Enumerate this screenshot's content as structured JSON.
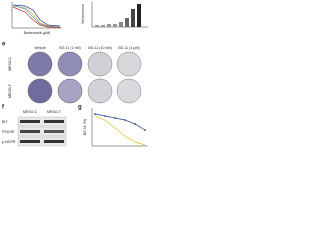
{
  "panel_a": {
    "x_label": "Bortezomib (μM)"
  },
  "panel_b": {
    "y_label": "Senescence"
  },
  "panel_e": {
    "letter": "e",
    "columns": [
      "Vehicle",
      "BG 11 (1 nM)",
      "BG 11 (10 nM)",
      "BG 11 (1 μM)"
    ],
    "rows": [
      "MESO-1",
      "MESO-T"
    ]
  },
  "panel_f": {
    "letter": "f",
    "columns": [
      "MESO-C",
      "MESO-T"
    ],
    "rows": [
      "BIT",
      "PSCHE",
      "p-NGFR"
    ]
  },
  "panel_g": {
    "letter": "g",
    "y_label": "BG 11 (%)"
  }
}
